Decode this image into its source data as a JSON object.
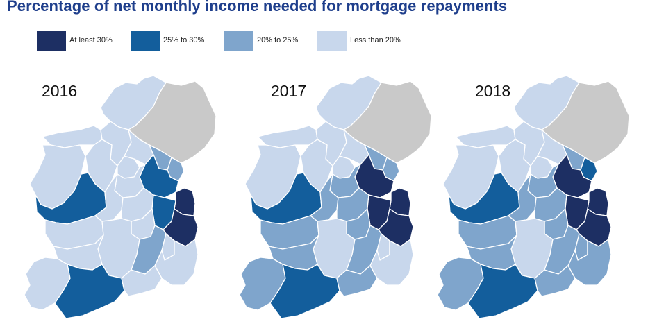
{
  "title": "Percentage of net monthly income needed for mortgage repayments",
  "legend": [
    {
      "key": "c1",
      "label": "At least 30%",
      "color": "#1d2f63"
    },
    {
      "key": "c2",
      "label": "25% to 30%",
      "color": "#135e9c"
    },
    {
      "key": "c3",
      "label": "20% to 25%",
      "color": "#7fa5cc"
    },
    {
      "key": "c4",
      "label": "Less than 20%",
      "color": "#c8d7ec"
    }
  ],
  "no_data_color": "#c9c9c9",
  "maps": [
    {
      "year": "2016",
      "regions": {
        "donegal": "c4",
        "northern_ireland": "none",
        "sligo": "c4",
        "leitrim": "c4",
        "mayo": "c4",
        "roscommon": "c4",
        "longford": "c4",
        "cavan": "c4",
        "monaghan": "c3",
        "louth": "c3",
        "galway_west": "c2",
        "galway_east": "c4",
        "westmeath": "c4",
        "meath": "c2",
        "dublin": "c1",
        "offaly": "c4",
        "kildare": "c2",
        "wicklow": "c1",
        "laois": "c4",
        "clare": "c4",
        "tipperary": "c4",
        "kilkenny": "c3",
        "carlow": "c4",
        "wexford": "c4",
        "limerick": "c4",
        "kerry": "c4",
        "cork": "c2",
        "waterford": "c4"
      }
    },
    {
      "year": "2017",
      "regions": {
        "donegal": "c4",
        "northern_ireland": "none",
        "sligo": "c4",
        "leitrim": "c4",
        "mayo": "c4",
        "roscommon": "c4",
        "longford": "c4",
        "cavan": "c4",
        "monaghan": "c3",
        "louth": "c3",
        "galway_west": "c2",
        "galway_east": "c3",
        "westmeath": "c3",
        "meath": "c1",
        "dublin": "c1",
        "offaly": "c3",
        "kildare": "c1",
        "wicklow": "c1",
        "laois": "c3",
        "clare": "c3",
        "tipperary": "c4",
        "kilkenny": "c3",
        "carlow": "c4",
        "wexford": "c4",
        "limerick": "c3",
        "kerry": "c3",
        "cork": "c2",
        "waterford": "c3"
      }
    },
    {
      "year": "2018",
      "regions": {
        "donegal": "c4",
        "northern_ireland": "none",
        "sligo": "c4",
        "leitrim": "c4",
        "mayo": "c4",
        "roscommon": "c4",
        "longford": "c4",
        "cavan": "c4",
        "monaghan": "c3",
        "louth": "c2",
        "galway_west": "c2",
        "galway_east": "c3",
        "westmeath": "c3",
        "meath": "c1",
        "dublin": "c1",
        "offaly": "c3",
        "kildare": "c1",
        "wicklow": "c1",
        "laois": "c3",
        "clare": "c3",
        "tipperary": "c4",
        "kilkenny": "c3",
        "carlow": "c3",
        "wexford": "c3",
        "limerick": "c3",
        "kerry": "c3",
        "cork": "c2",
        "waterford": "c3"
      }
    }
  ]
}
